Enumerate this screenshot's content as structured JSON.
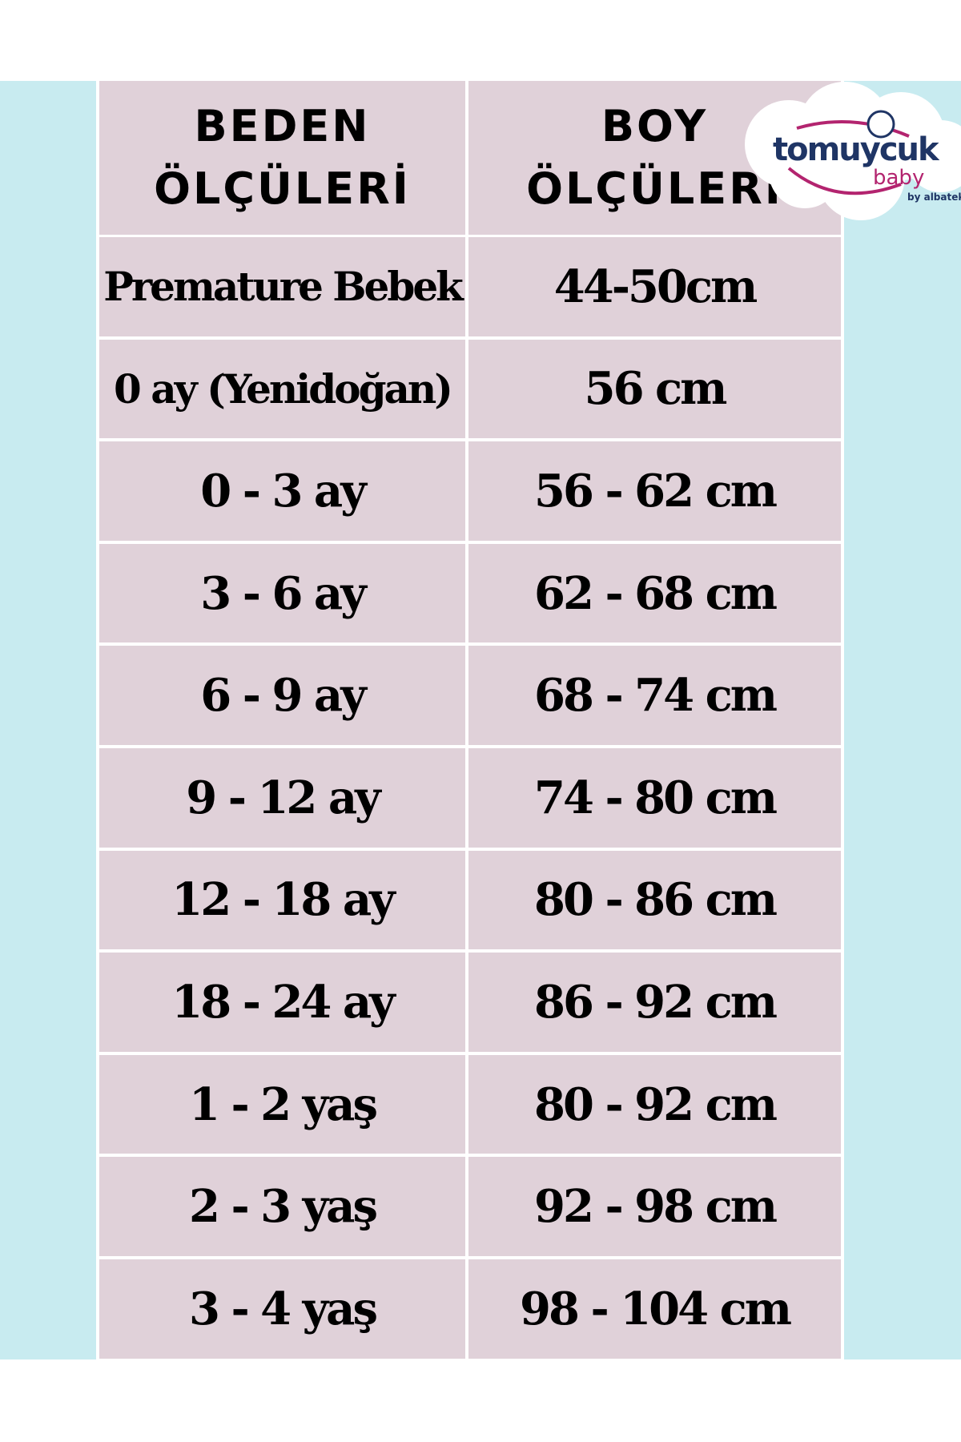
{
  "headers": {
    "size": "BEDEN\nÖLÇÜLERİ",
    "height": "BOY\nÖLÇÜLERİ"
  },
  "rows": [
    {
      "size": "Premature Bebek",
      "height": "44-50cm"
    },
    {
      "size": "0 ay (Yenidoğan)",
      "height": "56 cm"
    },
    {
      "size": "0 - 3 ay",
      "height": "56 - 62 cm"
    },
    {
      "size": "3 - 6 ay",
      "height": "62 - 68 cm"
    },
    {
      "size": "6 - 9 ay",
      "height": "68 - 74 cm"
    },
    {
      "size": "9 - 12 ay",
      "height": "74 - 80 cm"
    },
    {
      "size": "12 - 18 ay",
      "height": "80 - 86 cm"
    },
    {
      "size": "18 - 24 ay",
      "height": "86 - 92 cm"
    },
    {
      "size": "1 - 2 yaş",
      "height": "80 - 92 cm"
    },
    {
      "size": "2 - 3 yaş",
      "height": "92 - 98 cm"
    },
    {
      "size": "3 - 4 yaş",
      "height": "98 - 104 cm"
    }
  ],
  "logo": {
    "brand": "tomuycuk",
    "sub": "baby",
    "by": "by albatek"
  },
  "colors": {
    "band": "#c8ebf0",
    "cell": "#e0d1d9",
    "logo_navy": "#1f3565",
    "logo_magenta": "#b3246f"
  }
}
